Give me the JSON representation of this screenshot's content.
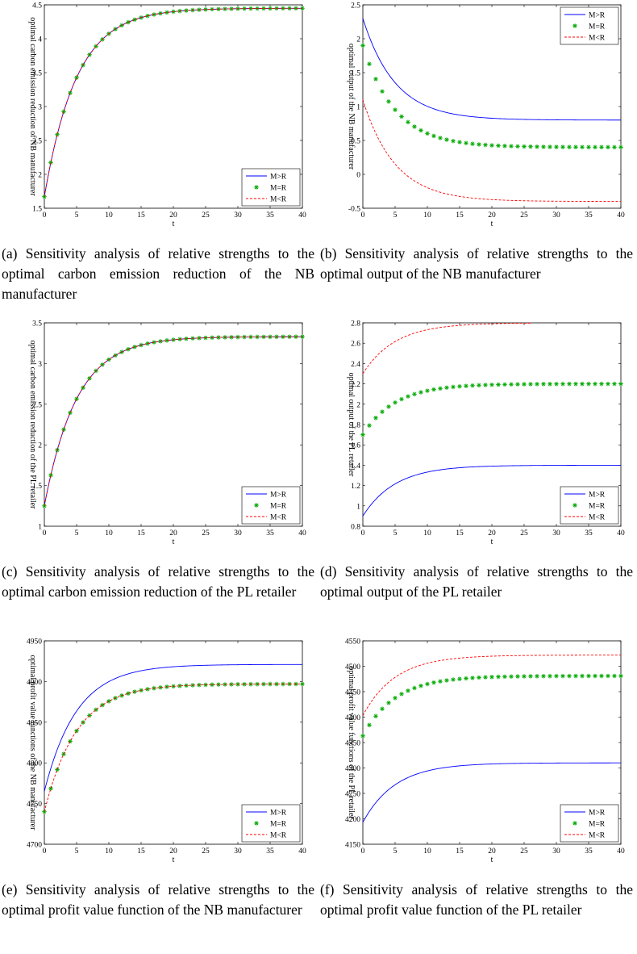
{
  "chart_data": [
    {
      "id": "a",
      "type": "line",
      "caption": "(a) Sensitivity analysis of relative strengths to the optimal carbon emission reduction of the NB manufacturer",
      "xlabel": "t",
      "ylabel": "optimal carbon emission reduction of NB manufacturer",
      "xlim": [
        0,
        40
      ],
      "ylim": [
        1.5,
        4.5
      ],
      "xticks": [
        0,
        5,
        10,
        15,
        20,
        25,
        30,
        35,
        40
      ],
      "xtick_labels": [
        "0",
        "5",
        "10",
        "15",
        "20",
        "25",
        "30",
        "35",
        "40"
      ],
      "yticks": [
        1.5,
        2,
        2.5,
        3,
        3.5,
        4,
        4.5
      ],
      "ytick_labels": [
        "1.5",
        "2",
        "2.5",
        "3",
        "3.5",
        "4",
        "4.5"
      ],
      "legend_position": "bottom-right",
      "grid": false,
      "series": [
        {
          "name": "M>R",
          "style": "solid",
          "color": "#0000ff",
          "start": 1.67,
          "end": 4.45,
          "rate": 0.2
        },
        {
          "name": "M=R",
          "style": "marker",
          "color": "#00aa00",
          "start": 1.67,
          "end": 4.45,
          "rate": 0.2
        },
        {
          "name": "M<R",
          "style": "dashed",
          "color": "#ff0000",
          "start": 1.67,
          "end": 4.45,
          "rate": 0.2
        }
      ]
    },
    {
      "id": "b",
      "type": "line",
      "caption": "(b) Sensitivity analysis of relative strengths to the optimal output of the NB manufacturer",
      "xlabel": "t",
      "ylabel": "optimal output of the NB manufacturer",
      "xlim": [
        0,
        40
      ],
      "ylim": [
        -0.5,
        2.5
      ],
      "xticks": [
        0,
        5,
        10,
        15,
        20,
        25,
        30,
        35,
        40
      ],
      "xtick_labels": [
        "0",
        "5",
        "10",
        "15",
        "20",
        "25",
        "30",
        "35",
        "40"
      ],
      "yticks": [
        -0.5,
        0,
        0.5,
        1,
        1.5,
        2,
        2.5
      ],
      "ytick_labels": [
        "-0.5",
        "0",
        "0.5",
        "1",
        "1.5",
        "2",
        "2.5"
      ],
      "legend_position": "top-right",
      "grid": false,
      "series": [
        {
          "name": "M>R",
          "style": "solid",
          "color": "#0000ff",
          "start": 2.3,
          "end": 0.8,
          "rate": 0.2
        },
        {
          "name": "M=R",
          "style": "marker",
          "color": "#00aa00",
          "start": 1.9,
          "end": 0.4,
          "rate": 0.2
        },
        {
          "name": "M<R",
          "style": "dashed",
          "color": "#ff0000",
          "start": 1.1,
          "end": -0.4,
          "rate": 0.2
        }
      ]
    },
    {
      "id": "c",
      "type": "line",
      "caption": "(c) Sensitivity analysis of relative strengths to the optimal carbon emission reduction of the PL retailer",
      "xlabel": "t",
      "ylabel": "optimal carbon emission reduction of the PL retailer",
      "xlim": [
        0,
        40
      ],
      "ylim": [
        1,
        3.5
      ],
      "xticks": [
        0,
        5,
        10,
        15,
        20,
        25,
        30,
        35,
        40
      ],
      "xtick_labels": [
        "0",
        "5",
        "10",
        "15",
        "20",
        "25",
        "30",
        "35",
        "40"
      ],
      "yticks": [
        1,
        1.5,
        2,
        2.5,
        3,
        3.5
      ],
      "ytick_labels": [
        "1",
        "1.5",
        "2",
        "2.5",
        "3",
        "3.5"
      ],
      "legend_position": "bottom-right",
      "grid": false,
      "series": [
        {
          "name": "M>R",
          "style": "solid",
          "color": "#0000ff",
          "start": 1.25,
          "end": 3.33,
          "rate": 0.2
        },
        {
          "name": "M=R",
          "style": "marker",
          "color": "#00aa00",
          "start": 1.25,
          "end": 3.33,
          "rate": 0.2
        },
        {
          "name": "M<R",
          "style": "dashed",
          "color": "#ff0000",
          "start": 1.25,
          "end": 3.33,
          "rate": 0.2
        }
      ]
    },
    {
      "id": "d",
      "type": "line",
      "caption": "(d) Sensitivity analysis of relative strengths to the optimal output of the PL retailer",
      "xlabel": "t",
      "ylabel": "optimal output of the PL retailer",
      "xlim": [
        0,
        40
      ],
      "ylim": [
        0.8,
        2.8
      ],
      "xticks": [
        0,
        5,
        10,
        15,
        20,
        25,
        30,
        35,
        40
      ],
      "xtick_labels": [
        "0",
        "5",
        "10",
        "15",
        "20",
        "25",
        "30",
        "35",
        "40"
      ],
      "yticks": [
        0.8,
        1,
        1.2,
        1.4,
        1.6,
        1.8,
        2,
        2.2,
        2.4,
        2.6,
        2.8
      ],
      "ytick_labels": [
        "0.8",
        "1",
        "1.2",
        "1.4",
        "1.6",
        "1.8",
        "2",
        "2.2",
        "2.4",
        "2.6",
        "2.8"
      ],
      "legend_position": "bottom-right",
      "grid": false,
      "series": [
        {
          "name": "M>R",
          "style": "solid",
          "color": "#0000ff",
          "start": 0.9,
          "end": 1.4,
          "rate": 0.2
        },
        {
          "name": "M=R",
          "style": "marker",
          "color": "#00aa00",
          "start": 1.7,
          "end": 2.2,
          "rate": 0.2
        },
        {
          "name": "M<R",
          "style": "dashed",
          "color": "#ff0000",
          "start": 2.3,
          "end": 2.8,
          "rate": 0.2,
          "xmax": 26
        }
      ]
    },
    {
      "id": "e",
      "type": "line",
      "caption": "(e) Sensitivity analysis of relative strengths to the optimal profit value function of the NB manufacturer",
      "xlabel": "t",
      "ylabel": "optimal profit value functions of the NB manufacturer",
      "xlim": [
        0,
        40
      ],
      "ylim": [
        4700,
        4950
      ],
      "xticks": [
        0,
        5,
        10,
        15,
        20,
        25,
        30,
        35,
        40
      ],
      "xtick_labels": [
        "0",
        "5",
        "10",
        "15",
        "20",
        "25",
        "30",
        "35",
        "40"
      ],
      "yticks": [
        4700,
        4750,
        4800,
        4850,
        4900,
        4950
      ],
      "ytick_labels": [
        "4700",
        "4750",
        "4800",
        "4850",
        "4900",
        "4950"
      ],
      "legend_position": "bottom-right",
      "grid": false,
      "series": [
        {
          "name": "M>R",
          "style": "solid",
          "color": "#0000ff",
          "start": 4765,
          "end": 4921,
          "rate": 0.2
        },
        {
          "name": "M=R",
          "style": "marker",
          "color": "#00aa00",
          "start": 4740,
          "end": 4897,
          "rate": 0.2
        },
        {
          "name": "M<R",
          "style": "dashed",
          "color": "#ff0000",
          "start": 4740,
          "end": 4897,
          "rate": 0.2
        }
      ]
    },
    {
      "id": "f",
      "type": "line",
      "caption": "(f) Sensitivity analysis of relative strengths to the optimal profit value function of the PL retailer",
      "xlabel": "t",
      "ylabel": "optimal profit value functions of the PL retailer",
      "xlim": [
        0,
        40
      ],
      "ylim": [
        4150,
        4550
      ],
      "xticks": [
        0,
        5,
        10,
        15,
        20,
        25,
        30,
        35,
        40
      ],
      "xtick_labels": [
        "0",
        "5",
        "10",
        "15",
        "20",
        "25",
        "30",
        "35",
        "40"
      ],
      "yticks": [
        4150,
        4200,
        4250,
        4300,
        4350,
        4400,
        4450,
        4500,
        4550
      ],
      "ytick_labels": [
        "4150",
        "4200",
        "4250",
        "4300",
        "4350",
        "4400",
        "4450",
        "4500",
        "4550"
      ],
      "legend_position": "bottom-right",
      "grid": false,
      "series": [
        {
          "name": "M>R",
          "style": "solid",
          "color": "#0000ff",
          "start": 4193,
          "end": 4310,
          "rate": 0.2
        },
        {
          "name": "M=R",
          "style": "marker",
          "color": "#00aa00",
          "start": 4363,
          "end": 4481,
          "rate": 0.2
        },
        {
          "name": "M<R",
          "style": "dashed",
          "color": "#ff0000",
          "start": 4403,
          "end": 4522,
          "rate": 0.2
        }
      ]
    }
  ]
}
